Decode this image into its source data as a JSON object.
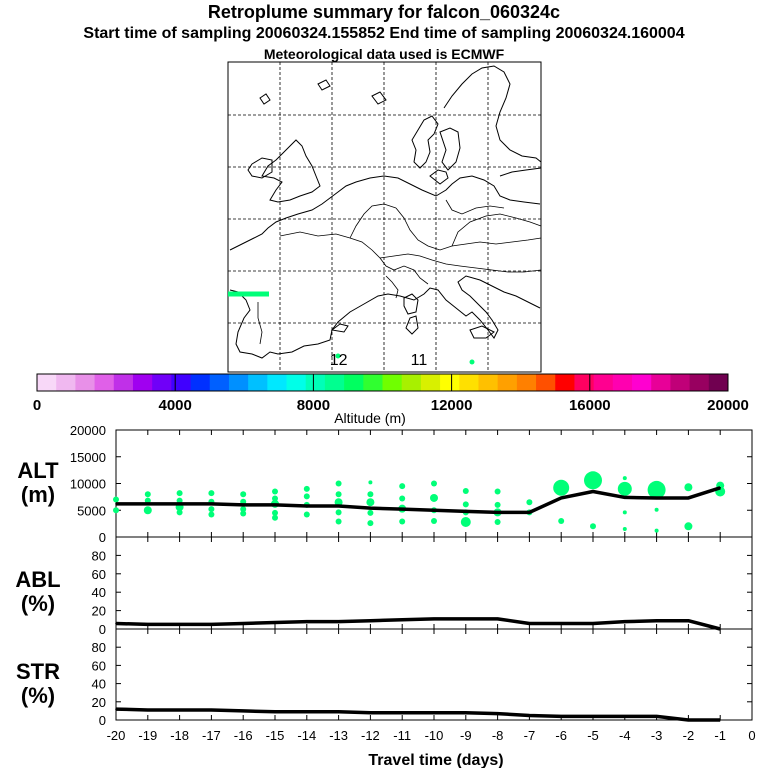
{
  "header": {
    "title": "Retroplume summary for falcon_060324c",
    "sampling": "Start time of sampling 20060324.155852     End time of sampling 20060324.160004",
    "met": "Meteorological data used is ECMWF"
  },
  "map": {
    "labels": [
      {
        "text": "12",
        "lon": 0.6,
        "lat": 36.1
      },
      {
        "text": "11",
        "lon": 8.3,
        "lat": 36.1
      }
    ]
  },
  "colorbar": {
    "label": "Altitude (m)",
    "ticks": [
      "0",
      "4000",
      "8000",
      "12000",
      "16000",
      "20000"
    ],
    "colors": [
      "#f8d8f8",
      "#f0b8f0",
      "#e890e8",
      "#e060e8",
      "#c030e8",
      "#a000f0",
      "#7000f8",
      "#4000ff",
      "#0030ff",
      "#0060ff",
      "#0090ff",
      "#00c0ff",
      "#00e8ff",
      "#00ffe8",
      "#00ffb8",
      "#00ff90",
      "#00ff60",
      "#30ff30",
      "#70ff00",
      "#a8f000",
      "#d8f000",
      "#ffff00",
      "#ffe000",
      "#ffc000",
      "#ffa000",
      "#ff8000",
      "#ff5000",
      "#ff0000",
      "#ff0060",
      "#ff0090",
      "#ff00b0",
      "#ff00d0",
      "#e80098",
      "#c00078",
      "#980060",
      "#700050"
    ]
  },
  "chart_data": [
    {
      "type": "line",
      "name": "ALT",
      "ylabel": "ALT (m)",
      "ylabel_lines": [
        "ALT",
        "(m)"
      ],
      "x": [
        -20,
        -19,
        -18,
        -17,
        -16,
        -15,
        -14,
        -13,
        -12,
        -11,
        -10,
        -9,
        -8,
        -7,
        -6,
        -5,
        -4,
        -3,
        -2,
        -1
      ],
      "values": [
        6200,
        6200,
        6200,
        6200,
        6000,
        6000,
        5800,
        5800,
        5400,
        5200,
        5000,
        4800,
        4600,
        4600,
        7300,
        8500,
        7400,
        7300,
        7300,
        9200
      ],
      "clusters": [
        {
          "x": -20,
          "y": [
            7000,
            5000
          ],
          "r": [
            3,
            3
          ]
        },
        {
          "x": -19,
          "y": [
            8000,
            6800,
            5000
          ],
          "r": [
            3,
            3,
            4
          ]
        },
        {
          "x": -18,
          "y": [
            8200,
            6800,
            5600,
            4600
          ],
          "r": [
            3,
            3,
            4,
            3
          ]
        },
        {
          "x": -17,
          "y": [
            8200,
            6600,
            5200,
            4200
          ],
          "r": [
            3,
            3,
            3,
            3
          ]
        },
        {
          "x": -16,
          "y": [
            8000,
            6600,
            5200,
            4400
          ],
          "r": [
            3,
            3,
            3,
            3
          ]
        },
        {
          "x": -15,
          "y": [
            8500,
            7200,
            6200,
            4500,
            3600
          ],
          "r": [
            3,
            3,
            4,
            3,
            3
          ]
        },
        {
          "x": -14,
          "y": [
            9000,
            7600,
            6000,
            4200
          ],
          "r": [
            3,
            3,
            3,
            3
          ]
        },
        {
          "x": -13,
          "y": [
            10000,
            8000,
            6500,
            4600,
            2900
          ],
          "r": [
            3,
            3,
            4,
            3,
            3
          ]
        },
        {
          "x": -12,
          "y": [
            10200,
            8000,
            6500,
            4500,
            2600
          ],
          "r": [
            2,
            3,
            4,
            3,
            3
          ]
        },
        {
          "x": -11,
          "y": [
            9500,
            7200,
            5300,
            2900
          ],
          "r": [
            3,
            3,
            4,
            3
          ]
        },
        {
          "x": -10,
          "y": [
            10000,
            7300,
            5000,
            3000
          ],
          "r": [
            3,
            4,
            3,
            3
          ]
        },
        {
          "x": -9,
          "y": [
            8600,
            6100,
            4600,
            2800
          ],
          "r": [
            3,
            3,
            3,
            5
          ]
        },
        {
          "x": -8,
          "y": [
            8500,
            6000,
            4600,
            2800
          ],
          "r": [
            3,
            3,
            4,
            3
          ]
        },
        {
          "x": -7,
          "y": [
            6500,
            4600
          ],
          "r": [
            3,
            3
          ]
        },
        {
          "x": -6,
          "y": [
            9200,
            3000
          ],
          "r": [
            8,
            3
          ]
        },
        {
          "x": -5,
          "y": [
            10600,
            2000
          ],
          "r": [
            9,
            3
          ]
        },
        {
          "x": -4,
          "y": [
            11000,
            9000,
            4600,
            1500
          ],
          "r": [
            2,
            7,
            2,
            2
          ]
        },
        {
          "x": -3,
          "y": [
            8800,
            5100,
            1200
          ],
          "r": [
            9,
            2,
            2
          ]
        },
        {
          "x": -2,
          "y": [
            9300,
            2000
          ],
          "r": [
            4,
            4
          ]
        },
        {
          "x": -1,
          "y": [
            9600,
            8500
          ],
          "r": [
            4,
            5
          ]
        }
      ],
      "ylim": [
        0,
        20000
      ],
      "ytick_labels": [
        "0",
        "5000",
        "10000",
        "15000",
        "20000"
      ]
    },
    {
      "type": "line",
      "name": "ABL",
      "ylabel": "ABL (%)",
      "ylabel_lines": [
        "ABL",
        "(%)"
      ],
      "x": [
        -20,
        -19,
        -18,
        -17,
        -16,
        -15,
        -14,
        -13,
        -12,
        -11,
        -10,
        -9,
        -8,
        -7,
        -6,
        -5,
        -4,
        -3,
        -2,
        -1
      ],
      "values": [
        6,
        5,
        5,
        5,
        6,
        7,
        8,
        8,
        9,
        10,
        11,
        11,
        11,
        6,
        6,
        6,
        8,
        9,
        9,
        0
      ],
      "ylim": [
        0,
        100
      ],
      "ytick_labels": [
        "0",
        "20",
        "40",
        "60",
        "80"
      ]
    },
    {
      "type": "line",
      "name": "STR",
      "ylabel": "STR (%)",
      "ylabel_lines": [
        "STR",
        "(%)"
      ],
      "x": [
        -20,
        -19,
        -18,
        -17,
        -16,
        -15,
        -14,
        -13,
        -12,
        -11,
        -10,
        -9,
        -8,
        -7,
        -6,
        -5,
        -4,
        -3,
        -2,
        -1
      ],
      "values": [
        12,
        11,
        11,
        11,
        10,
        9,
        9,
        9,
        8,
        8,
        8,
        8,
        7,
        5,
        4,
        4,
        4,
        4,
        0,
        0
      ],
      "ylim": [
        0,
        100
      ],
      "ytick_labels": [
        "0",
        "20",
        "40",
        "60",
        "80"
      ],
      "xlabel": "Travel time (days)",
      "xtick_labels": [
        "-20",
        "-19",
        "-18",
        "-17",
        "-16",
        "-15",
        "-14",
        "-13",
        "-12",
        "-11",
        "-10",
        "-9",
        "-8",
        "-7",
        "-6",
        "-5",
        "-4",
        "-3",
        "-2",
        "-1",
        "0"
      ]
    }
  ]
}
